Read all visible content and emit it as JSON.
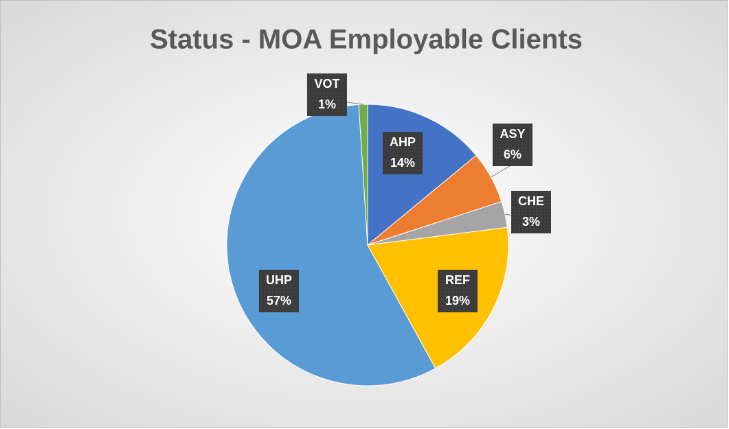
{
  "chart_data": {
    "type": "pie",
    "title": "Status - MOA Employable Clients",
    "categories": [
      "AHP",
      "ASY",
      "CHE",
      "REF",
      "UHP",
      "VOT"
    ],
    "values": [
      14,
      6,
      3,
      19,
      57,
      1
    ],
    "value_labels": [
      "14%",
      "6%",
      "3%",
      "19%",
      "57%",
      "1%"
    ],
    "colors": [
      "#4472c4",
      "#ed7d31",
      "#a5a5a5",
      "#ffc000",
      "#5b9bd5",
      "#70ad47"
    ]
  }
}
